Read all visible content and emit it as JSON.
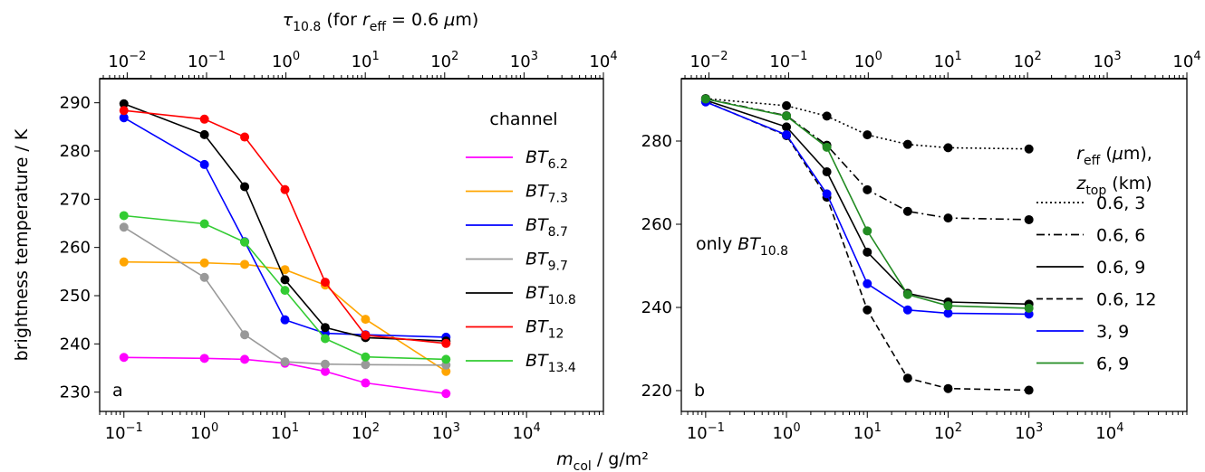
{
  "figure": {
    "top_axis_label": "τ10.8 (for reff = 0.6 μm)",
    "bottom_axis_label": "mcol / g/m²",
    "ylabel": "brightness temperature / K"
  },
  "chart_data": [
    {
      "type": "line",
      "panel_label": "a",
      "x_scale": "log",
      "x_top_scale": "log",
      "xlim": [
        0.05,
        90000
      ],
      "x_top_lim": [
        0.0045,
        10000
      ],
      "ylim": [
        226,
        295
      ],
      "x_ticks": [
        0.1,
        1,
        10,
        100,
        1000,
        10000
      ],
      "x_tick_labels": [
        "10−1",
        "100",
        "101",
        "102",
        "103",
        "104"
      ],
      "x_top_ticks": [
        0.01,
        0.1,
        1,
        10,
        100,
        1000,
        10000
      ],
      "x_top_tick_labels": [
        "10−2",
        "10−1",
        "100",
        "101",
        "102",
        "103",
        "104"
      ],
      "y_ticks": [
        230,
        240,
        250,
        260,
        270,
        280,
        290
      ],
      "y_tick_labels": [
        "230",
        "240",
        "250",
        "260",
        "270",
        "280",
        "290"
      ],
      "legend": {
        "title": "channel",
        "placement": "right"
      },
      "x": [
        0.1,
        1,
        3.16,
        10,
        31.6,
        100,
        1000
      ],
      "series": [
        {
          "name": "BT6.2",
          "color": "#ff00ff",
          "values": [
            237.2,
            237.0,
            236.8,
            236.0,
            234.3,
            231.9,
            229.7
          ]
        },
        {
          "name": "BT7.3",
          "color": "#ffa500",
          "values": [
            257.0,
            256.8,
            256.5,
            255.4,
            252.2,
            245.1,
            234.3
          ]
        },
        {
          "name": "BT8.7",
          "color": "#0000ff",
          "values": [
            286.9,
            277.2,
            261.2,
            245.0,
            242.2,
            241.9,
            241.4
          ]
        },
        {
          "name": "BT9.7",
          "color": "#999999",
          "values": [
            264.2,
            253.8,
            241.9,
            236.3,
            235.8,
            235.7,
            235.6
          ]
        },
        {
          "name": "BT10.8",
          "color": "#000000",
          "values": [
            289.8,
            283.4,
            272.6,
            253.3,
            243.4,
            241.3,
            240.6
          ]
        },
        {
          "name": "BT12",
          "color": "#ff0000",
          "values": [
            288.4,
            286.6,
            282.9,
            272.0,
            252.8,
            241.8,
            240.1
          ]
        },
        {
          "name": "BT13.4",
          "color": "#33cc33",
          "values": [
            266.6,
            264.9,
            261.1,
            251.1,
            241.1,
            237.3,
            236.8
          ]
        }
      ]
    },
    {
      "type": "line",
      "panel_label": "b",
      "annotation": "only BT10.8",
      "x_scale": "log",
      "x_top_scale": "log",
      "xlim": [
        0.05,
        90000
      ],
      "x_top_lim": [
        0.0045,
        10000
      ],
      "ylim": [
        215,
        295
      ],
      "x_ticks": [
        0.1,
        1,
        10,
        100,
        1000,
        10000
      ],
      "x_tick_labels": [
        "10−1",
        "100",
        "101",
        "102",
        "103",
        "104"
      ],
      "x_top_ticks": [
        0.01,
        0.1,
        1,
        10,
        100,
        1000,
        10000
      ],
      "x_top_tick_labels": [
        "10−2",
        "10−1",
        "100",
        "101",
        "102",
        "103",
        "104"
      ],
      "y_ticks": [
        220,
        240,
        260,
        280
      ],
      "y_tick_labels": [
        "220",
        "240",
        "260",
        "280"
      ],
      "legend": {
        "title_line1": "reff (μm),",
        "title_line2": "ztop (km)",
        "placement": "right"
      },
      "x": [
        0.1,
        1,
        3.16,
        10,
        31.6,
        100,
        1000
      ],
      "series": [
        {
          "name": "0.6, 3",
          "color": "#000000",
          "dash": "dotted",
          "values": [
            290.2,
            288.5,
            286.0,
            281.5,
            279.2,
            278.4,
            278.1
          ]
        },
        {
          "name": "0.6, 6",
          "color": "#000000",
          "dash": "dashdot",
          "values": [
            290.2,
            286.1,
            279.0,
            268.3,
            263.1,
            261.5,
            261.1
          ]
        },
        {
          "name": "0.6, 9",
          "color": "#000000",
          "dash": "solid",
          "values": [
            289.8,
            283.4,
            272.6,
            253.3,
            243.4,
            241.3,
            240.8
          ]
        },
        {
          "name": "0.6, 12",
          "color": "#000000",
          "dash": "dashed",
          "values": [
            289.5,
            281.3,
            266.5,
            239.4,
            223.0,
            220.5,
            220.1
          ]
        },
        {
          "name": "3, 9",
          "color": "#0000ff",
          "dash": "solid",
          "values": [
            289.4,
            281.5,
            267.3,
            245.7,
            239.4,
            238.6,
            238.4
          ]
        },
        {
          "name": "6, 9",
          "color": "#228b22",
          "dash": "solid",
          "values": [
            290.1,
            286.0,
            278.5,
            258.4,
            243.1,
            240.4,
            239.8
          ]
        }
      ]
    }
  ]
}
